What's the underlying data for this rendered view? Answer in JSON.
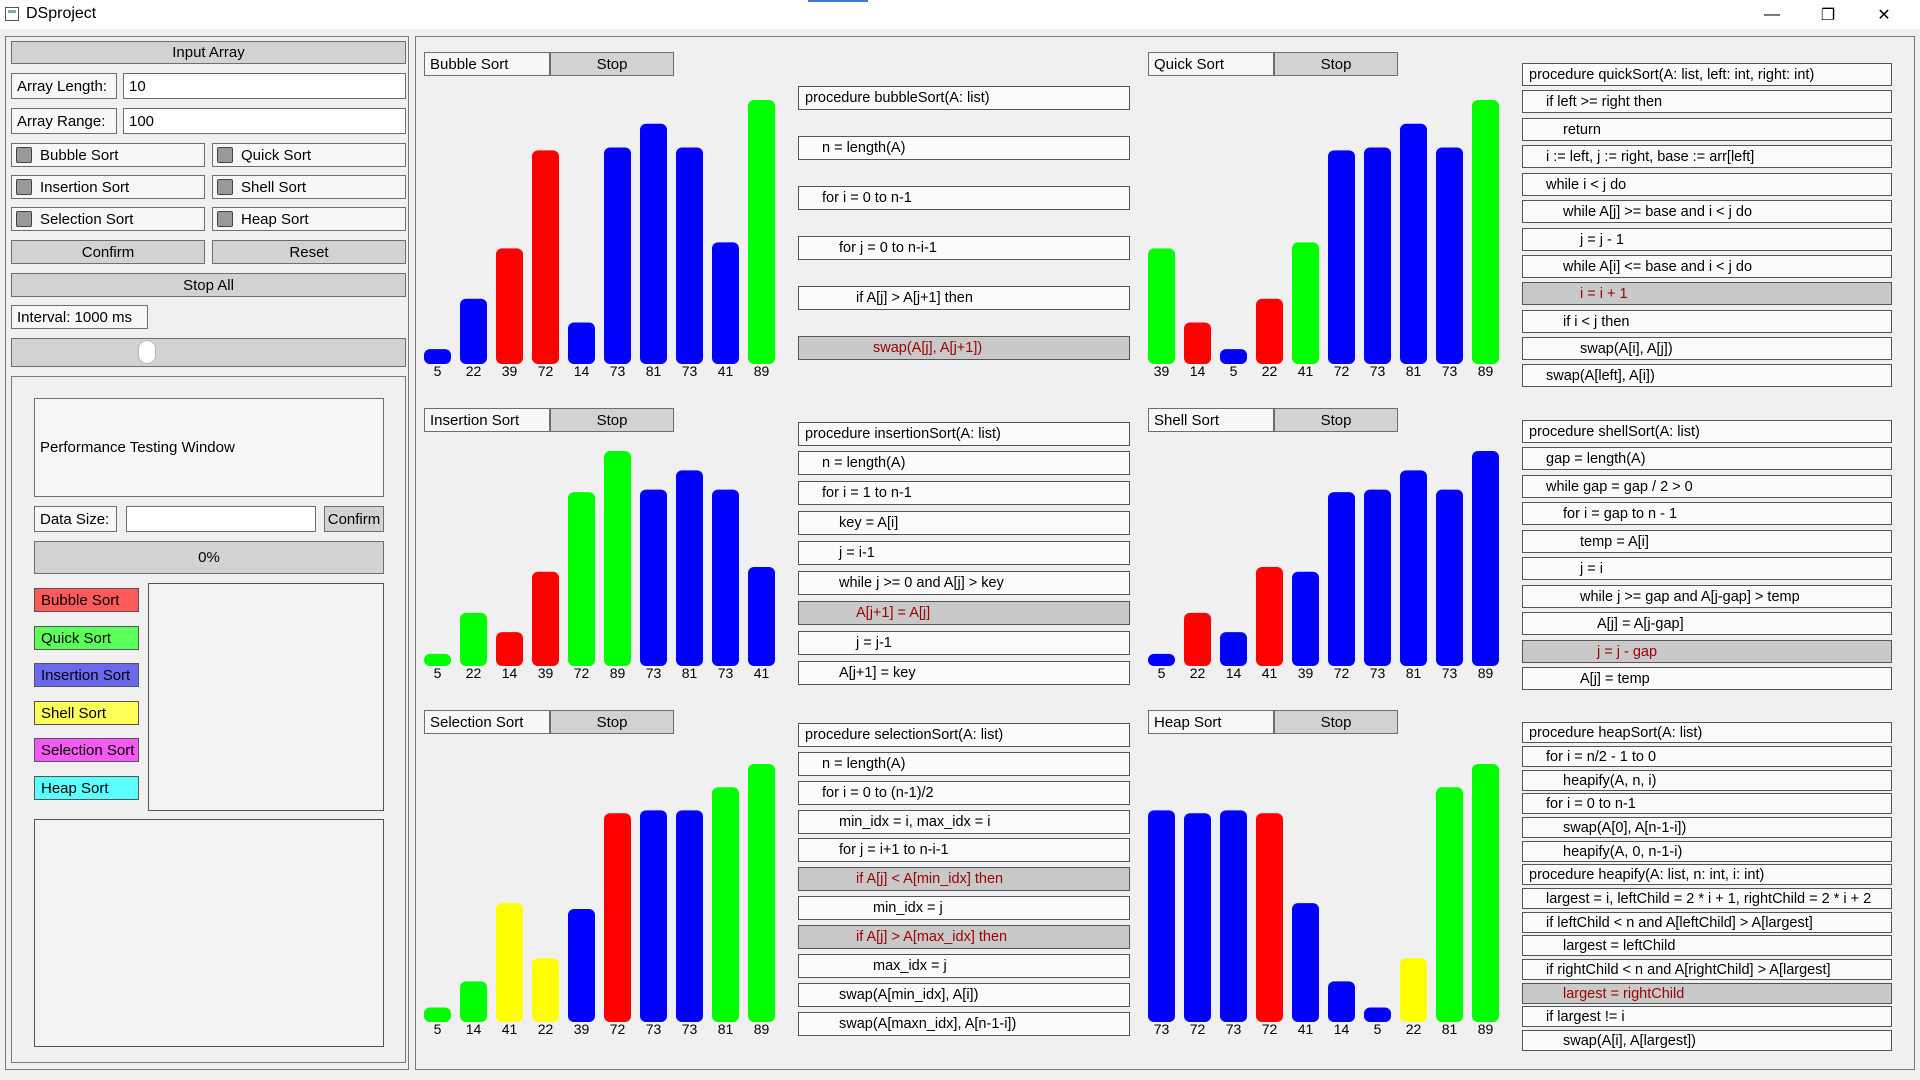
{
  "window": {
    "title": "DSproject",
    "minimize": "—",
    "restore": "❐",
    "close": "✕"
  },
  "controls": {
    "input_array": "Input Array",
    "array_length_label": "Array Length:",
    "array_length_value": "10",
    "array_range_label": "Array Range:",
    "array_range_value": "100",
    "checks": [
      "Bubble Sort",
      "Quick Sort",
      "Insertion Sort",
      "Shell Sort",
      "Selection Sort",
      "Heap Sort"
    ],
    "confirm": "Confirm",
    "reset": "Reset",
    "stop_all": "Stop All",
    "interval": "Interval: 1000 ms"
  },
  "perf": {
    "window_title": "Performance Testing Window",
    "data_size_label": "Data Size:",
    "data_size_value": "",
    "confirm": "Confirm",
    "progress": "0%",
    "legend": [
      {
        "label": "Bubble Sort",
        "color": "#ff5a5a"
      },
      {
        "label": "Quick Sort",
        "color": "#5cff5c"
      },
      {
        "label": "Insertion Sort",
        "color": "#6a6af0"
      },
      {
        "label": "Shell Sort",
        "color": "#ffff5a"
      },
      {
        "label": "Selection Sort",
        "color": "#f55af5"
      },
      {
        "label": "Heap Sort",
        "color": "#5cffff"
      }
    ]
  },
  "colors": {
    "blue": "#0000ff",
    "red": "#ff0000",
    "green": "#00ff00",
    "yellow": "#ffff00"
  },
  "sorts": [
    {
      "name": "Bubble Sort",
      "stop": "Stop",
      "values": [
        5,
        22,
        39,
        72,
        14,
        73,
        81,
        73,
        41,
        89
      ],
      "colors": [
        "blue",
        "blue",
        "red",
        "red",
        "blue",
        "blue",
        "blue",
        "blue",
        "blue",
        "green"
      ],
      "code": [
        "procedure bubbleSort(A: list)",
        "  n = length(A)",
        "  for i = 0 to n-1",
        "    for j = 0 to n-i-1",
        "      if A[j] > A[j+1] then",
        "        swap(A[j], A[j+1])"
      ],
      "highlight": 5
    },
    {
      "name": "Quick Sort",
      "stop": "Stop",
      "values": [
        39,
        14,
        5,
        22,
        41,
        72,
        73,
        81,
        73,
        89
      ],
      "colors": [
        "green",
        "red",
        "blue",
        "red",
        "green",
        "blue",
        "blue",
        "blue",
        "blue",
        "green"
      ],
      "code": [
        "procedure quickSort(A: list, left: int, right: int)",
        "  if left >= right then",
        "    return",
        "  i := left, j := right, base := arr[left]",
        "  while i < j do",
        "    while A[j] >= base and i < j do",
        "      j = j - 1",
        "    while A[i] <= base and i < j do",
        "      i = i + 1",
        "    if i < j then",
        "      swap(A[i], A[j])",
        "  swap(A[left], A[i])"
      ],
      "highlight": 8
    },
    {
      "name": "Insertion Sort",
      "stop": "Stop",
      "values": [
        5,
        22,
        14,
        39,
        72,
        89,
        73,
        81,
        73,
        41
      ],
      "colors": [
        "green",
        "green",
        "red",
        "red",
        "green",
        "green",
        "blue",
        "blue",
        "blue",
        "blue"
      ],
      "code": [
        "procedure insertionSort(A: list)",
        "  n = length(A)",
        "  for i = 1 to n-1",
        "    key = A[i]",
        "    j = i-1",
        "    while j >= 0 and A[j] > key",
        "      A[j+1] = A[j]",
        "      j = j-1",
        "    A[j+1] = key"
      ],
      "highlight": 6
    },
    {
      "name": "Shell Sort",
      "stop": "Stop",
      "values": [
        5,
        22,
        14,
        41,
        39,
        72,
        73,
        81,
        73,
        89
      ],
      "colors": [
        "blue",
        "red",
        "blue",
        "red",
        "blue",
        "blue",
        "blue",
        "blue",
        "blue",
        "blue"
      ],
      "code": [
        "procedure shellSort(A: list)",
        "  gap = length(A)",
        "  while gap = gap / 2 > 0",
        "    for i = gap to n - 1",
        "      temp = A[i]",
        "      j = i",
        "      while j >= gap and A[j-gap] > temp",
        "        A[j] = A[j-gap]",
        "        j = j - gap",
        "      A[j] = temp"
      ],
      "highlight": 8
    },
    {
      "name": "Selection Sort",
      "stop": "Stop",
      "values": [
        5,
        14,
        41,
        22,
        39,
        72,
        73,
        73,
        81,
        89
      ],
      "colors": [
        "green",
        "green",
        "yellow",
        "yellow",
        "blue",
        "red",
        "blue",
        "blue",
        "green",
        "green"
      ],
      "code": [
        "procedure selectionSort(A: list)",
        "  n = length(A)",
        "  for i = 0 to (n-1)/2",
        "    min_idx = i, max_idx = i",
        "    for j = i+1 to n-i-1",
        "      if A[j] < A[min_idx] then",
        "        min_idx = j",
        "      if A[j] > A[max_idx] then",
        "        max_idx = j",
        "    swap(A[min_idx], A[i])",
        "    swap(A[maxn_idx], A[n-1-i])"
      ],
      "highlight": [
        5,
        7
      ]
    },
    {
      "name": "Heap Sort",
      "stop": "Stop",
      "values": [
        73,
        72,
        73,
        72,
        41,
        14,
        5,
        22,
        81,
        89
      ],
      "colors": [
        "blue",
        "blue",
        "blue",
        "red",
        "blue",
        "blue",
        "blue",
        "yellow",
        "green",
        "green"
      ],
      "code": [
        "procedure heapSort(A: list)",
        "  for i = n/2 - 1 to 0",
        "    heapify(A, n, i)",
        "  for i = 0 to n-1",
        "    swap(A[0], A[n-1-i])",
        "    heapify(A, 0, n-1-i)",
        "procedure heapify(A: list, n: int, i: int)",
        "  largest = i, leftChild = 2 * i + 1, rightChild = 2 * i + 2",
        "  if leftChild < n and A[leftChild] > A[largest]",
        "    largest = leftChild",
        "  if rightChild < n and A[rightChild] > A[largest]",
        "    largest = rightChild",
        "  if largest != i",
        "    swap(A[i], A[largest])"
      ],
      "highlight": 11
    }
  ]
}
